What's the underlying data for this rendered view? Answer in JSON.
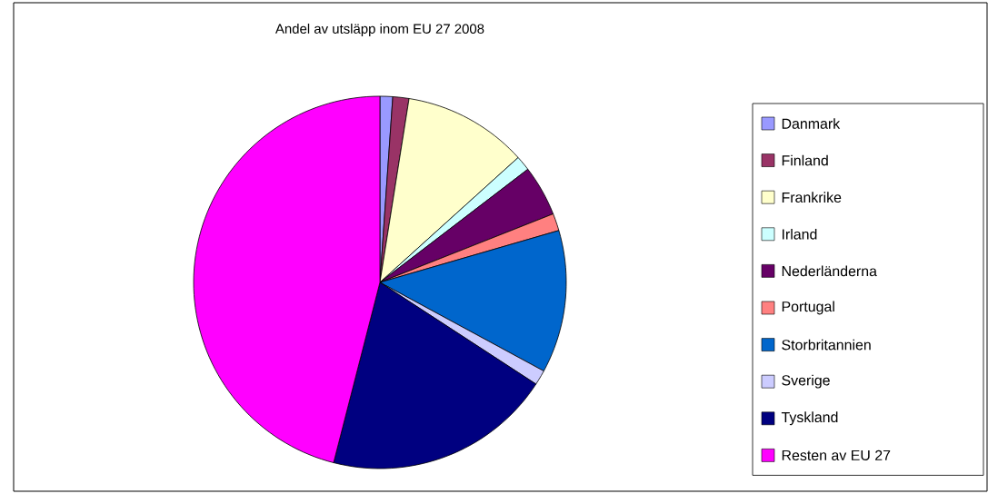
{
  "chart_data": {
    "type": "pie",
    "title": "Andel av utsläpp inom EU 27 2008",
    "categories": [
      "Danmark",
      "Finland",
      "Frankrike",
      "Irland",
      "Nederländerna",
      "Portugal",
      "Storbritannien",
      "Sverige",
      "Tyskland",
      "Resten av EU 27"
    ],
    "values": [
      1.1,
      1.4,
      10.8,
      1.3,
      4.4,
      1.5,
      12.4,
      1.3,
      19.8,
      46.0
    ],
    "colors": [
      "#9999ff",
      "#993366",
      "#ffffcc",
      "#ccffff",
      "#660066",
      "#ff8080",
      "#0066cc",
      "#ccccff",
      "#000080",
      "#ff00ff"
    ],
    "legend": "right"
  }
}
